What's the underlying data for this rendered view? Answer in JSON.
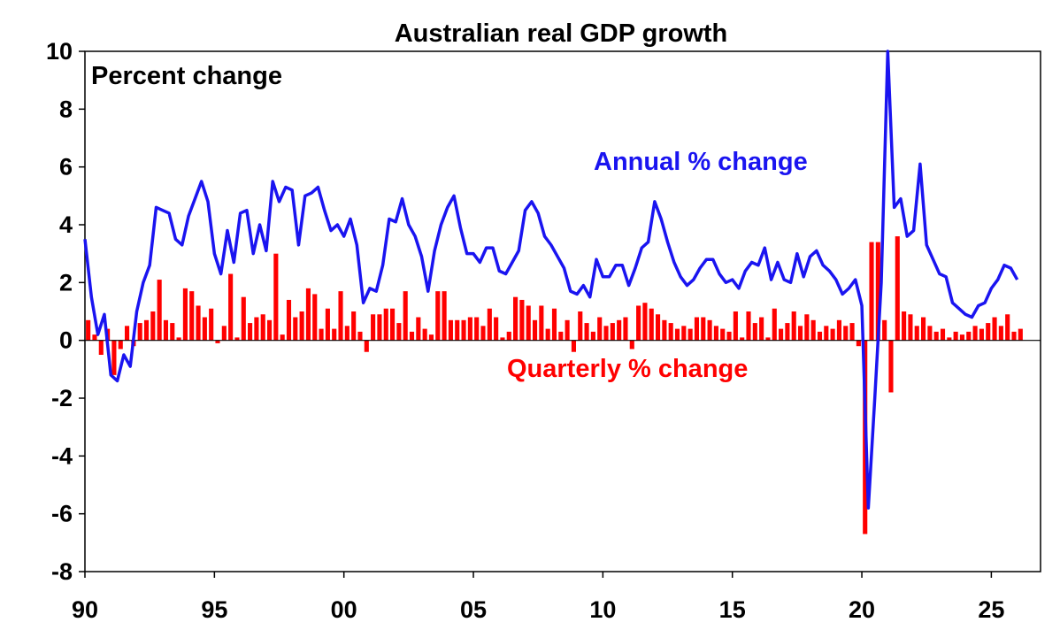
{
  "chart_data": {
    "type": "bar+line",
    "title": "Australian real GDP growth",
    "ylabel": "Percent change",
    "ylim": [
      -8,
      10
    ],
    "yticks": [
      10,
      8,
      6,
      4,
      2,
      0,
      -2,
      -4,
      -6,
      -8
    ],
    "xlim": [
      1990,
      2026.9
    ],
    "xticks": [
      {
        "value": 1990,
        "label": "90"
      },
      {
        "value": 1995,
        "label": "95"
      },
      {
        "value": 2000,
        "label": "00"
      },
      {
        "value": 2005,
        "label": "05"
      },
      {
        "value": 2010,
        "label": "10"
      },
      {
        "value": 2015,
        "label": "15"
      },
      {
        "value": 2020,
        "label": "20"
      },
      {
        "value": 2025,
        "label": "25"
      }
    ],
    "grid": false,
    "colors": {
      "annual": "#1a14f0",
      "quarterly": "#ff0000"
    },
    "series": [
      {
        "name": "Annual % change",
        "kind": "line",
        "start": 1990.0,
        "step": 0.25,
        "values": [
          3.5,
          1.5,
          0.2,
          0.9,
          -1.2,
          -1.4,
          -0.5,
          -0.9,
          1.0,
          2.0,
          2.6,
          4.6,
          4.5,
          4.4,
          3.5,
          3.3,
          4.3,
          4.9,
          5.5,
          4.8,
          3.0,
          2.3,
          3.8,
          2.7,
          4.4,
          4.5,
          3.0,
          4.0,
          3.1,
          5.5,
          4.8,
          5.3,
          5.2,
          3.3,
          5.0,
          5.1,
          5.3,
          4.5,
          3.8,
          4.0,
          3.6,
          4.2,
          3.3,
          1.3,
          1.8,
          1.7,
          2.6,
          4.2,
          4.1,
          4.9,
          4.0,
          3.6,
          2.9,
          1.7,
          3.1,
          4.0,
          4.6,
          5.0,
          3.9,
          3.0,
          3.0,
          2.7,
          3.2,
          3.2,
          2.4,
          2.3,
          2.7,
          3.1,
          4.5,
          4.8,
          4.4,
          3.6,
          3.3,
          2.9,
          2.5,
          1.7,
          1.6,
          1.9,
          1.5,
          2.8,
          2.2,
          2.2,
          2.6,
          2.6,
          1.9,
          2.5,
          3.2,
          3.4,
          4.8,
          4.2,
          3.4,
          2.7,
          2.2,
          1.9,
          2.1,
          2.5,
          2.8,
          2.8,
          2.3,
          2.0,
          2.1,
          1.8,
          2.4,
          2.7,
          2.6,
          3.2,
          2.1,
          2.7,
          2.1,
          2.0,
          3.0,
          2.2,
          2.9,
          3.1,
          2.6,
          2.4,
          2.1,
          1.6,
          1.8,
          2.1,
          1.2,
          -5.8,
          -2.0,
          2.0,
          10.0,
          4.6,
          4.9,
          3.6,
          3.8,
          6.1,
          3.3,
          2.8,
          2.3,
          2.2,
          1.3,
          1.1,
          0.9,
          0.8,
          1.2,
          1.3,
          1.8,
          2.1,
          2.6,
          2.5,
          2.1
        ]
      },
      {
        "name": "Quarterly % change",
        "kind": "bar",
        "start": 1990.0,
        "step": 0.25,
        "values": [
          0.7,
          0.2,
          -0.5,
          0.4,
          -1.2,
          -0.3,
          0.5,
          -0.2,
          0.6,
          0.7,
          1.0,
          2.1,
          0.7,
          0.6,
          0.1,
          1.8,
          1.7,
          1.2,
          0.8,
          1.1,
          -0.1,
          0.5,
          2.3,
          0.1,
          1.5,
          0.6,
          0.8,
          0.9,
          0.7,
          3.0,
          0.2,
          1.4,
          0.8,
          1.0,
          1.8,
          1.6,
          0.4,
          1.1,
          0.4,
          1.7,
          0.5,
          1.0,
          0.3,
          -0.4,
          0.9,
          0.9,
          1.1,
          1.1,
          0.6,
          1.7,
          0.3,
          0.8,
          0.4,
          0.2,
          1.7,
          1.7,
          0.7,
          0.7,
          0.7,
          0.8,
          0.8,
          0.5,
          1.1,
          0.8,
          0.1,
          0.3,
          1.5,
          1.4,
          1.2,
          0.7,
          1.2,
          0.4,
          1.1,
          0.3,
          0.7,
          -0.4,
          1.0,
          0.6,
          0.3,
          0.8,
          0.5,
          0.6,
          0.7,
          0.8,
          -0.3,
          1.2,
          1.3,
          1.1,
          0.9,
          0.7,
          0.6,
          0.4,
          0.5,
          0.4,
          0.8,
          0.8,
          0.7,
          0.5,
          0.4,
          0.3,
          1.0,
          0.1,
          1.0,
          0.6,
          0.8,
          0.1,
          1.1,
          0.4,
          0.6,
          1.0,
          0.5,
          0.9,
          0.7,
          0.3,
          0.5,
          0.4,
          0.7,
          0.5,
          0.6,
          -0.2,
          -6.7,
          3.4,
          3.4,
          0.7,
          -1.8,
          3.6,
          1.0,
          0.9,
          0.5,
          0.8,
          0.5,
          0.3,
          0.4,
          0.1,
          0.3,
          0.2,
          0.3,
          0.5,
          0.4,
          0.6,
          0.8,
          0.5,
          0.9,
          0.3,
          0.4
        ]
      }
    ]
  }
}
